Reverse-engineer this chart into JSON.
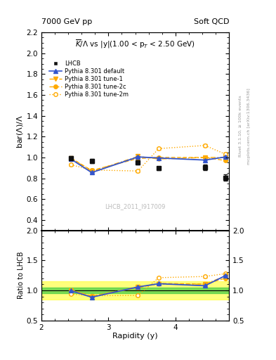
{
  "title_left": "7000 GeV pp",
  "title_right": "Soft QCD",
  "plot_title": "$\\overline{K}/\\Lambda$ vs |y|(1.00 < p$_T$ < 2.50 GeV)",
  "ylabel_main": "bar($\\Lambda$)/$\\Lambda$",
  "ylabel_ratio": "Ratio to LHCB",
  "xlabel": "Rapidity (y)",
  "watermark": "LHCB_2011_I917009",
  "right_label1": "Rivet 3.1.10, ≥ 100k events",
  "right_label2": "mcplots.cern.ch [arXiv:1306.3436]",
  "x_data": [
    2.44,
    2.75,
    3.44,
    3.75,
    4.44,
    4.75
  ],
  "lhcb_y": [
    0.99,
    0.965,
    0.95,
    0.895,
    0.905,
    0.805
  ],
  "lhcb_yerr": [
    0.02,
    0.02,
    0.02,
    0.02,
    0.025,
    0.03
  ],
  "pythia_default_y": [
    0.985,
    0.855,
    1.005,
    0.995,
    0.975,
    1.005
  ],
  "pythia_default_yerr": [
    0.005,
    0.005,
    0.005,
    0.005,
    0.005,
    0.005
  ],
  "pythia_tune1_y": [
    0.995,
    0.865,
    1.01,
    0.985,
    1.0,
    1.0
  ],
  "pythia_tune1_yerr": [
    0.005,
    0.005,
    0.005,
    0.005,
    0.005,
    0.005
  ],
  "pythia_tune2c_y": [
    0.995,
    0.875,
    0.99,
    1.0,
    1.0,
    0.97
  ],
  "pythia_tune2c_yerr": [
    0.005,
    0.005,
    0.005,
    0.005,
    0.005,
    0.005
  ],
  "pythia_tune2m_y": [
    0.93,
    0.88,
    0.87,
    1.085,
    1.115,
    1.03
  ],
  "pythia_tune2m_yerr": [
    0.01,
    0.01,
    0.01,
    0.01,
    0.015,
    0.015
  ],
  "ylim_main": [
    0.3,
    2.2
  ],
  "ylim_ratio": [
    0.5,
    2.0
  ],
  "xlim": [
    2.0,
    4.8
  ],
  "yticks_main": [
    0.4,
    0.6,
    0.8,
    1.0,
    1.2,
    1.4,
    1.6,
    1.8,
    2.0,
    2.2
  ],
  "yticks_ratio": [
    0.5,
    1.0,
    1.5,
    2.0
  ],
  "xticks": [
    2,
    3,
    4
  ],
  "color_lhcb": "#111111",
  "color_default": "#3355cc",
  "color_orange": "#ffaa00",
  "green_band": 0.05,
  "yellow_band": 0.15
}
